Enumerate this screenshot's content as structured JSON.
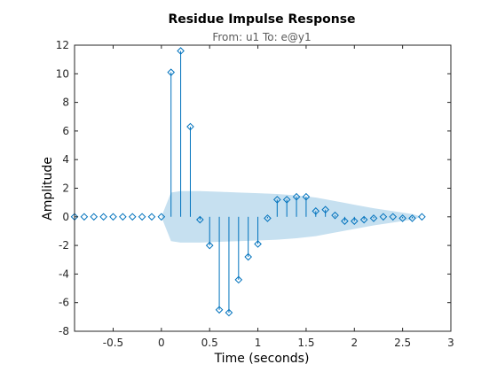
{
  "chart_data": {
    "type": "stem",
    "title": "Residue Impulse Response",
    "subtitle": "From: u1  To: e@y1",
    "xlabel": "Time (seconds)",
    "ylabel": "Amplitude",
    "xlim": [
      -0.9,
      3
    ],
    "ylim": [
      -8,
      12
    ],
    "xticks": [
      -0.5,
      0,
      0.5,
      1,
      1.5,
      2,
      2.5,
      3
    ],
    "xtick_labels": [
      "-0.5",
      "0",
      "0.5",
      "1",
      "1.5",
      "2",
      "2.5",
      "3"
    ],
    "yticks": [
      -8,
      -6,
      -4,
      -2,
      0,
      2,
      4,
      6,
      8,
      10,
      12
    ],
    "ytick_labels": [
      "-8",
      "-6",
      "-4",
      "-2",
      "0",
      "2",
      "4",
      "6",
      "8",
      "10",
      "12"
    ],
    "grid": false,
    "colors": {
      "stem": "#0072BD",
      "confidence_band": "#C6E0F0",
      "axes": "#262626"
    },
    "series": [
      {
        "x": [
          -0.9,
          -0.8,
          -0.7,
          -0.6,
          -0.5,
          -0.4,
          -0.3,
          -0.2,
          -0.1,
          0.0,
          0.1,
          0.2,
          0.3,
          0.4,
          0.5,
          0.6,
          0.7,
          0.8,
          0.9,
          1.0,
          1.1,
          1.2,
          1.3,
          1.4,
          1.5,
          1.6,
          1.7,
          1.8,
          1.9,
          2.0,
          2.1,
          2.2,
          2.3,
          2.4,
          2.5,
          2.6,
          2.7
        ],
        "values": [
          0,
          0,
          0,
          0,
          0,
          0,
          0,
          0,
          0,
          0,
          10.1,
          11.6,
          6.3,
          -0.2,
          -2.0,
          -6.5,
          -6.7,
          -4.4,
          -2.8,
          -1.9,
          -0.1,
          1.2,
          1.2,
          1.4,
          1.4,
          0.4,
          0.5,
          0.1,
          -0.3,
          -0.3,
          -0.2,
          -0.1,
          0.0,
          0.0,
          -0.1,
          -0.1,
          0.0
        ]
      }
    ],
    "confidence_region": {
      "x": [
        0.0,
        0.1,
        0.2,
        0.4,
        0.6,
        0.8,
        1.0,
        1.2,
        1.4,
        1.6,
        1.8,
        2.0,
        2.2,
        2.4,
        2.6,
        2.7
      ],
      "upper": [
        0.0,
        1.7,
        1.8,
        1.8,
        1.75,
        1.7,
        1.65,
        1.6,
        1.5,
        1.35,
        1.1,
        0.85,
        0.6,
        0.4,
        0.2,
        0.0
      ],
      "lower": [
        0.0,
        -1.7,
        -1.8,
        -1.8,
        -1.75,
        -1.7,
        -1.65,
        -1.6,
        -1.5,
        -1.35,
        -1.1,
        -0.85,
        -0.6,
        -0.4,
        -0.2,
        0.0
      ]
    }
  }
}
